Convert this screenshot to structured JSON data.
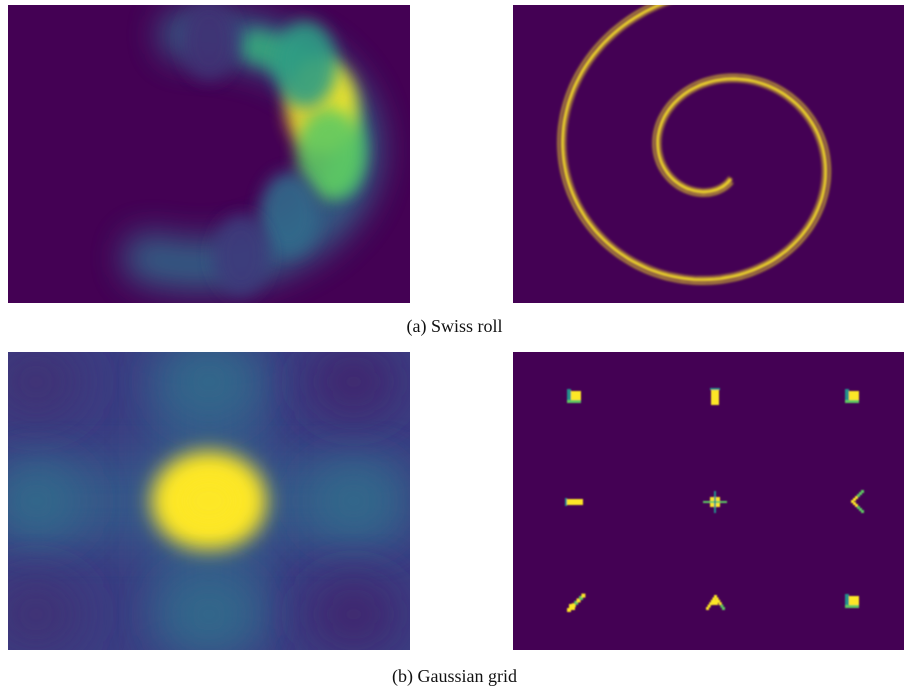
{
  "colors": {
    "background": "#440154",
    "viridis_low": "#440154",
    "viridis_mid": "#21918c",
    "viridis_high": "#fde725"
  },
  "captions": {
    "a": "(a) Swiss roll",
    "b": "(b) Gaussian grid"
  },
  "chart_data": [
    {
      "type": "heatmap",
      "subfigure": "a",
      "title": "",
      "colormap": "viridis",
      "axes_visible": false,
      "description_of_density": "blurred crescent arc, brightest on right side",
      "modes": [
        {
          "u": 0.78,
          "v": 0.34,
          "weight": 1.0
        },
        {
          "u": 0.8,
          "v": 0.5,
          "weight": 0.75
        },
        {
          "u": 0.74,
          "v": 0.2,
          "weight": 0.55
        },
        {
          "u": 0.7,
          "v": 0.7,
          "weight": 0.35
        },
        {
          "u": 0.58,
          "v": 0.84,
          "weight": 0.18
        },
        {
          "u": 0.5,
          "v": 0.12,
          "weight": 0.15
        }
      ]
    },
    {
      "type": "heatmap",
      "subfigure": "a",
      "title": "",
      "colormap": "viridis",
      "axes_visible": false,
      "description_of_density": "sharp swiss-roll spiral"
    },
    {
      "type": "heatmap",
      "subfigure": "b",
      "title": "",
      "colormap": "viridis",
      "axes_visible": false,
      "grid": [
        3,
        3
      ],
      "mode_weights": [
        [
          0.15,
          0.35,
          0.12
        ],
        [
          0.35,
          1.0,
          0.35
        ],
        [
          0.15,
          0.35,
          0.12
        ]
      ]
    },
    {
      "type": "heatmap",
      "subfigure": "b",
      "title": "",
      "colormap": "viridis",
      "axes_visible": false,
      "grid": [
        3,
        3
      ],
      "mode_shapes": [
        [
          "corner",
          "bar-vertical",
          "corner"
        ],
        [
          "bar-horizontal",
          "cross",
          "chevron"
        ],
        [
          "diagonal",
          "triangle",
          "corner"
        ]
      ]
    }
  ]
}
